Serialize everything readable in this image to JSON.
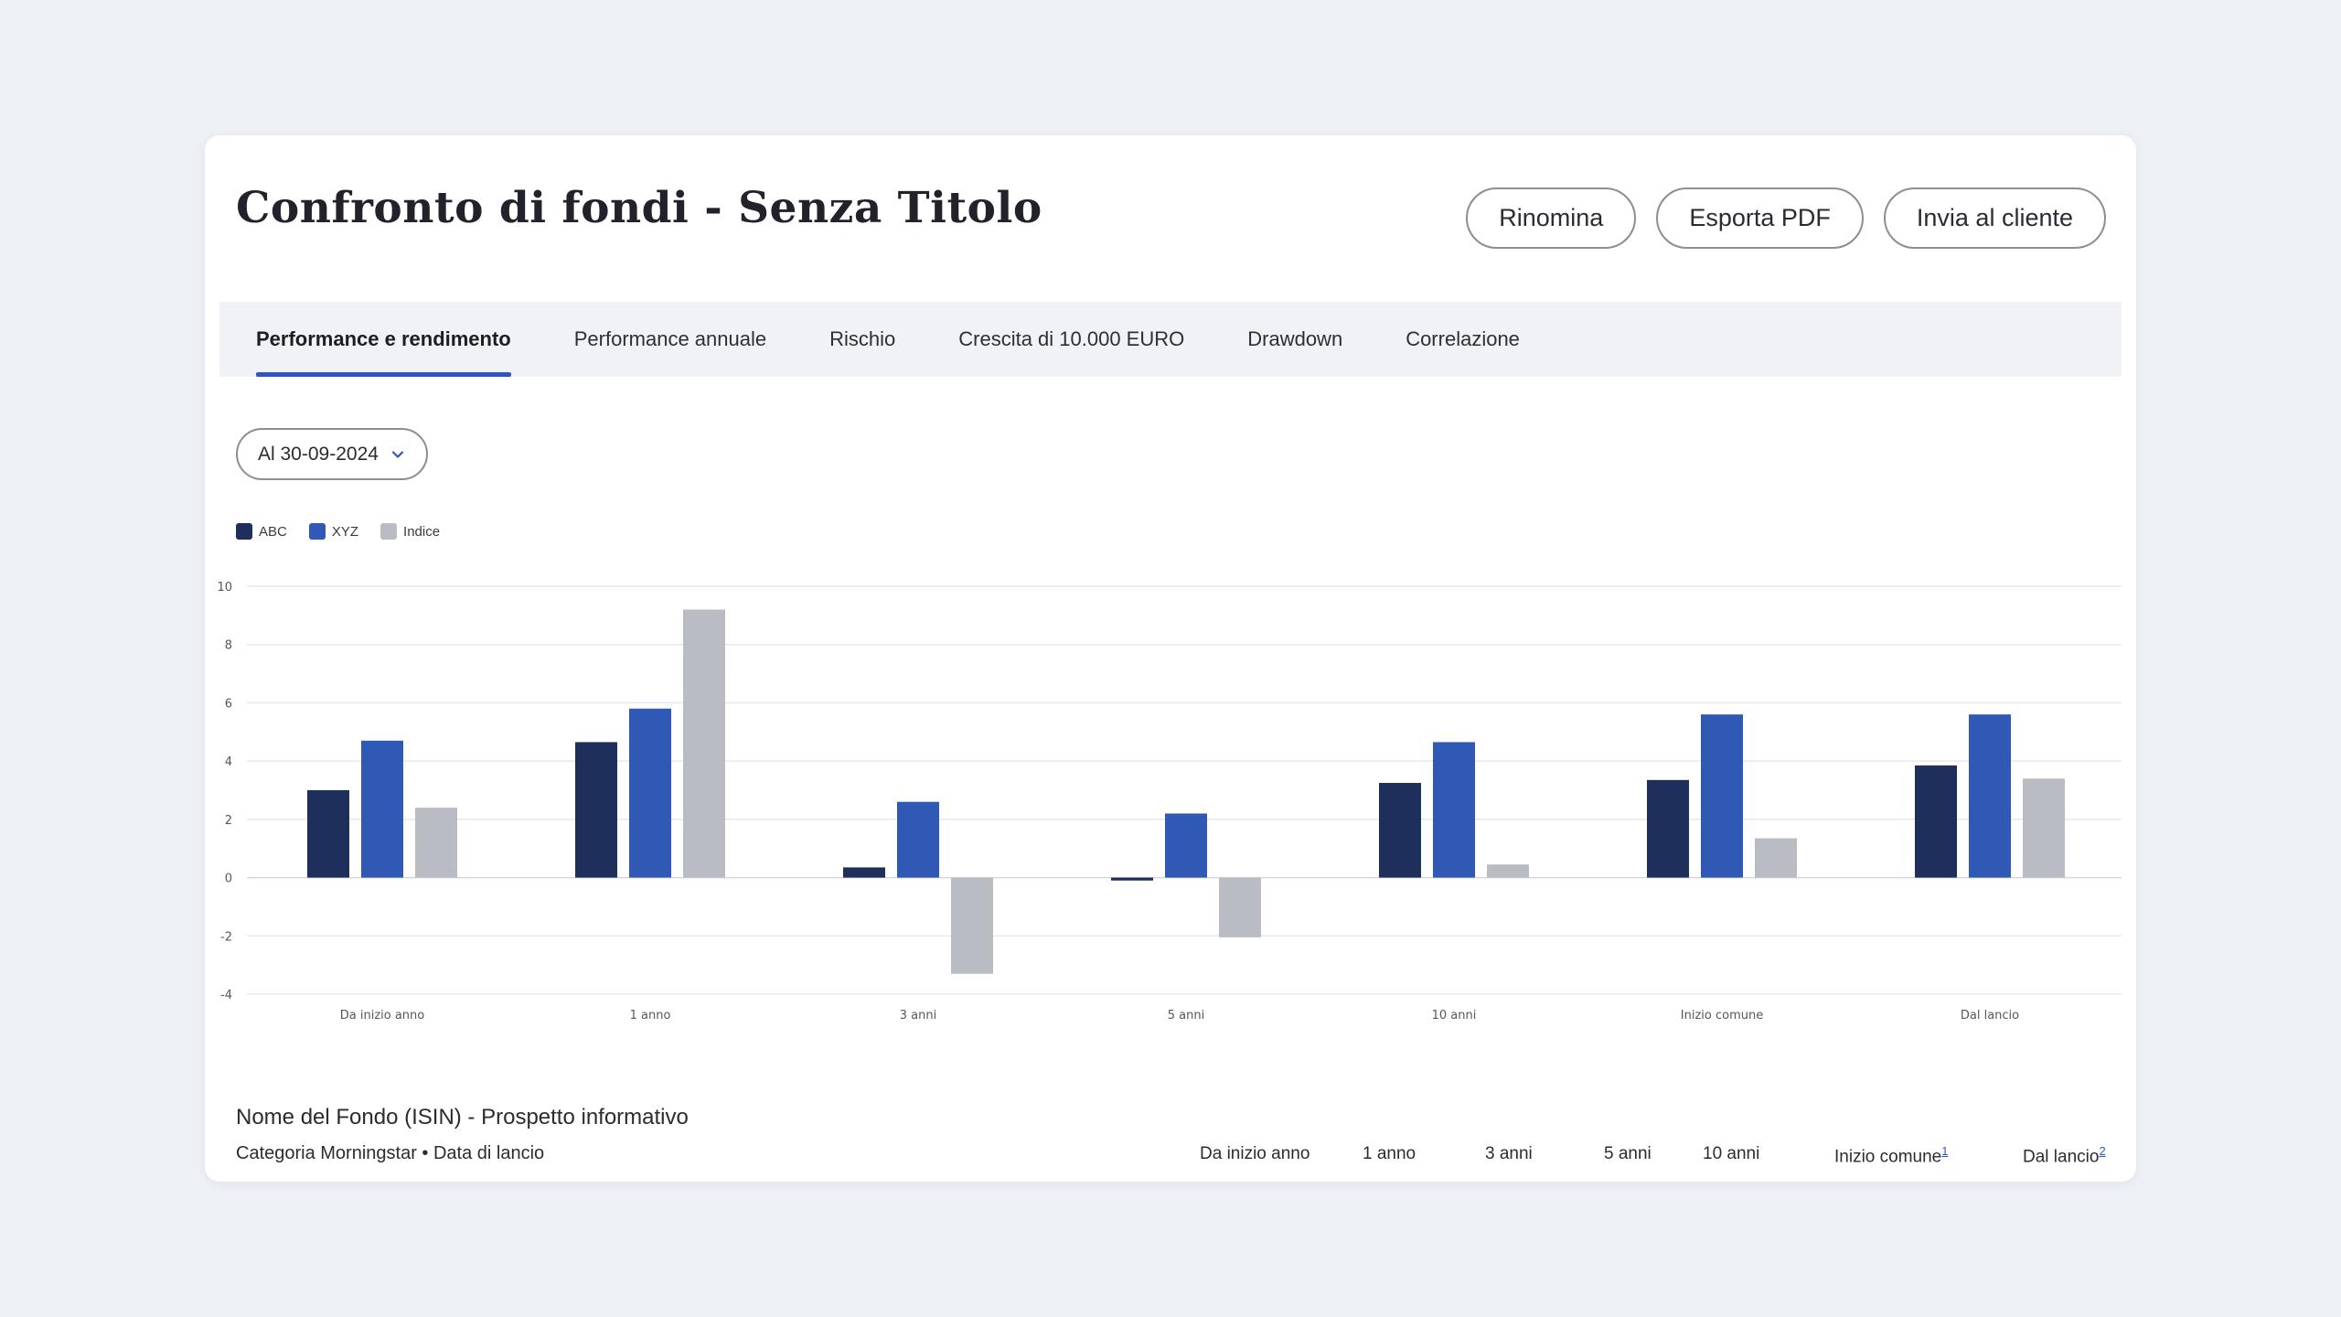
{
  "header": {
    "title": "Confronto di fondi - Senza Titolo",
    "rename_label": "Rinomina",
    "export_label": "Esporta PDF",
    "send_label": "Invia al cliente"
  },
  "tabs": [
    {
      "label": "Performance e rendimento",
      "active": true
    },
    {
      "label": "Performance annuale",
      "active": false
    },
    {
      "label": "Rischio",
      "active": false
    },
    {
      "label": "Crescita di 10.000 EURO",
      "active": false
    },
    {
      "label": "Drawdown",
      "active": false
    },
    {
      "label": "Correlazione",
      "active": false
    }
  ],
  "date_filter": {
    "value": "Al 30-09-2024",
    "icon": "chevron-down-icon"
  },
  "colors": {
    "accent": "#2f55c4",
    "abc": "#1e2f5c",
    "xyz": "#3059b5",
    "indice": "#babcc3"
  },
  "chart_data": {
    "type": "bar",
    "categories": [
      "Da inizio anno",
      "1 anno",
      "3 anni",
      "5 anni",
      "10 anni",
      "Inizio comune",
      "Dal lancio"
    ],
    "series": [
      {
        "name": "ABC",
        "color": "#1e2f5c",
        "values": [
          3.0,
          4.65,
          0.35,
          -0.1,
          3.25,
          3.35,
          3.85
        ]
      },
      {
        "name": "XYZ",
        "color": "#3059b5",
        "values": [
          4.7,
          5.8,
          2.6,
          2.2,
          4.65,
          5.6,
          5.6
        ]
      },
      {
        "name": "Indice",
        "color": "#babcc3",
        "values": [
          2.4,
          9.2,
          -3.3,
          -2.05,
          0.45,
          1.35,
          3.4
        ]
      }
    ],
    "y_ticks": [
      10,
      8,
      6,
      4,
      2,
      0,
      -2,
      -4
    ],
    "ylim": [
      -4,
      10
    ],
    "grid": true,
    "legend_position": "top-left",
    "xlabel": "",
    "ylabel": ""
  },
  "footer": {
    "title": "Nome del Fondo (ISIN) - Prospetto informativo",
    "subtitle": "Categoria Morningstar • Data di lancio",
    "columns": [
      {
        "label": "Da inizio anno",
        "note": ""
      },
      {
        "label": "1 anno",
        "note": ""
      },
      {
        "label": "3 anni",
        "note": ""
      },
      {
        "label": "5 anni",
        "note": ""
      },
      {
        "label": "10 anni",
        "note": ""
      },
      {
        "label": "Inizio comune",
        "note": "1"
      },
      {
        "label": "Dal lancio",
        "note": "2"
      }
    ]
  }
}
